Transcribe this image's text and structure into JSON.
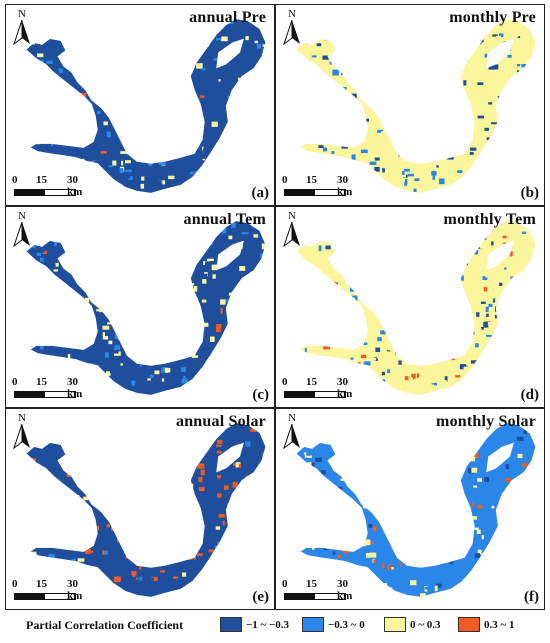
{
  "colors": {
    "c1": "#1f4f9c",
    "c2": "#2a86e8",
    "c3": "#fbf59c",
    "c4": "#f25a21"
  },
  "north_label": "N",
  "scale": {
    "t0": "0",
    "t1": "15",
    "t2": "30 km"
  },
  "panels": [
    {
      "title": "annual Pre",
      "label": "(a)",
      "main": "c1",
      "mix": [
        "c2",
        "c3"
      ],
      "accent": "c4",
      "accent_amount": 0.03
    },
    {
      "title": "monthly Pre",
      "label": "(b)",
      "main": "c3",
      "mix": [
        "c2",
        "c1"
      ],
      "accent": "c4",
      "accent_amount": 0.0
    },
    {
      "title": "annual Tem",
      "label": "(c)",
      "main": "c1",
      "mix": [
        "c2",
        "c3"
      ],
      "accent": "c4",
      "accent_amount": 0.05
    },
    {
      "title": "monthly Tem",
      "label": "(d)",
      "main": "c3",
      "mix": [
        "c1",
        "c2"
      ],
      "accent": "c4",
      "accent_amount": 0.08
    },
    {
      "title": "annual Solar",
      "label": "(e)",
      "main": "c1",
      "mix": [
        "c2",
        "c3",
        "c4"
      ],
      "accent": "c4",
      "accent_amount": 0.25
    },
    {
      "title": "monthly Solar",
      "label": "(f)",
      "main": "c2",
      "mix": [
        "c3",
        "c1"
      ],
      "accent": "c4",
      "accent_amount": 0.1
    }
  ],
  "legend": {
    "title": "Partial Correlation Coefficient",
    "items": [
      {
        "label": "−1 ~ −0.3",
        "color": "#1f4f9c"
      },
      {
        "label": "−0.3 ~ 0",
        "color": "#2a86e8"
      },
      {
        "label": "0 ~ 0.3",
        "color": "#fbf59c"
      },
      {
        "label": "0.3 ~ 1",
        "color": "#f25a21"
      }
    ]
  }
}
